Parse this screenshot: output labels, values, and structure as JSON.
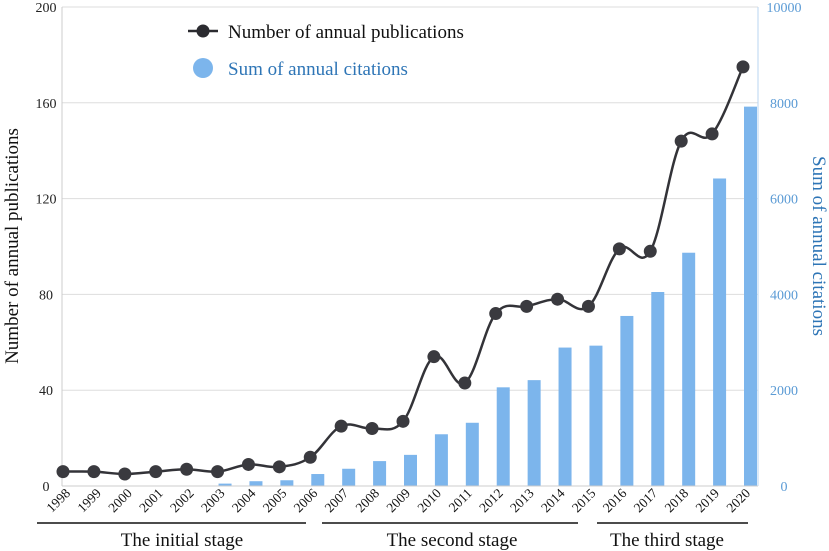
{
  "chart_data": {
    "type": "bar-line-combo",
    "categories": [
      "1998",
      "1999",
      "2000",
      "2001",
      "2002",
      "2003",
      "2004",
      "2005",
      "2006",
      "2007",
      "2008",
      "2009",
      "2010",
      "2011",
      "2012",
      "2013",
      "2014",
      "2015",
      "2016",
      "2017",
      "2018",
      "2019",
      "2020"
    ],
    "series": [
      {
        "name": "Number of annual publications",
        "type": "line",
        "axis": "left",
        "color": "#333338",
        "values": [
          6,
          6,
          5,
          6,
          7,
          6,
          9,
          8,
          12,
          25,
          24,
          27,
          54,
          43,
          72,
          75,
          78,
          75,
          99,
          98,
          144,
          147,
          175
        ]
      },
      {
        "name": "Sum of annual citations",
        "type": "bar",
        "axis": "right",
        "color": "#7cb5ec",
        "values": [
          0,
          0,
          0,
          0,
          5,
          50,
          100,
          120,
          250,
          360,
          520,
          650,
          1080,
          1320,
          2060,
          2210,
          2890,
          2930,
          3550,
          4050,
          4870,
          6420,
          7920
        ]
      }
    ],
    "y_left": {
      "label": "Number of annual publications",
      "min": 0,
      "max": 200,
      "ticks": [
        "0",
        "40",
        "80",
        "120",
        "160",
        "200"
      ]
    },
    "y_right": {
      "label": "Sum of annual citations",
      "min": 0,
      "max": 10000,
      "ticks": [
        "0",
        "2000",
        "4000",
        "6000",
        "8000",
        "10000"
      ],
      "color": "#5b9bd5"
    },
    "grid": true,
    "legend_position": "top-left",
    "stages": [
      {
        "label": "The initial stage",
        "from": "1998",
        "to": "2006"
      },
      {
        "label": "The second stage",
        "from": "2007",
        "to": "2015"
      },
      {
        "label": "The third stage",
        "from": "2016",
        "to": "2020"
      }
    ]
  }
}
